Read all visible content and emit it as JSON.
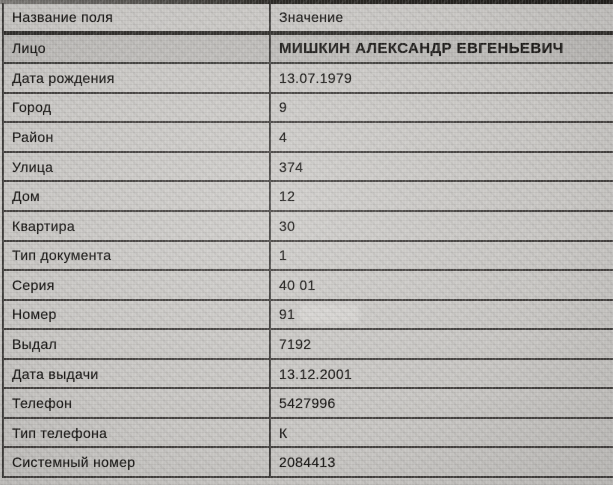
{
  "page": {
    "background_color": "#cbc9c6",
    "grid_line_color": "#282623",
    "text_color": "#201e1c"
  },
  "table": {
    "headers": {
      "field": "Название поля",
      "value": "Значение"
    },
    "rows": [
      {
        "field": "Лицо",
        "value": "МИШКИН АЛЕКСАНДР ЕВГЕНЬЕВИЧ",
        "highlight": true
      },
      {
        "field": "Дата рождения",
        "value": "13.07.1979"
      },
      {
        "field": "Город",
        "value": "9"
      },
      {
        "field": "Район",
        "value": "4"
      },
      {
        "field": "Улица",
        "value": "374"
      },
      {
        "field": "Дом",
        "value": "12"
      },
      {
        "field": "Квартира",
        "value": "30"
      },
      {
        "field": "Тип документа",
        "value": "1"
      },
      {
        "field": "Серия",
        "value": "40 01"
      },
      {
        "field": "Номер",
        "value": "91",
        "redacted": true
      },
      {
        "field": "Выдал",
        "value": "7192"
      },
      {
        "field": "Дата выдачи",
        "value": "13.12.2001"
      },
      {
        "field": "Телефон",
        "value": "5427996"
      },
      {
        "field": "Тип телефона",
        "value": "К"
      },
      {
        "field": "Системный номер",
        "value": "2084413"
      }
    ]
  }
}
